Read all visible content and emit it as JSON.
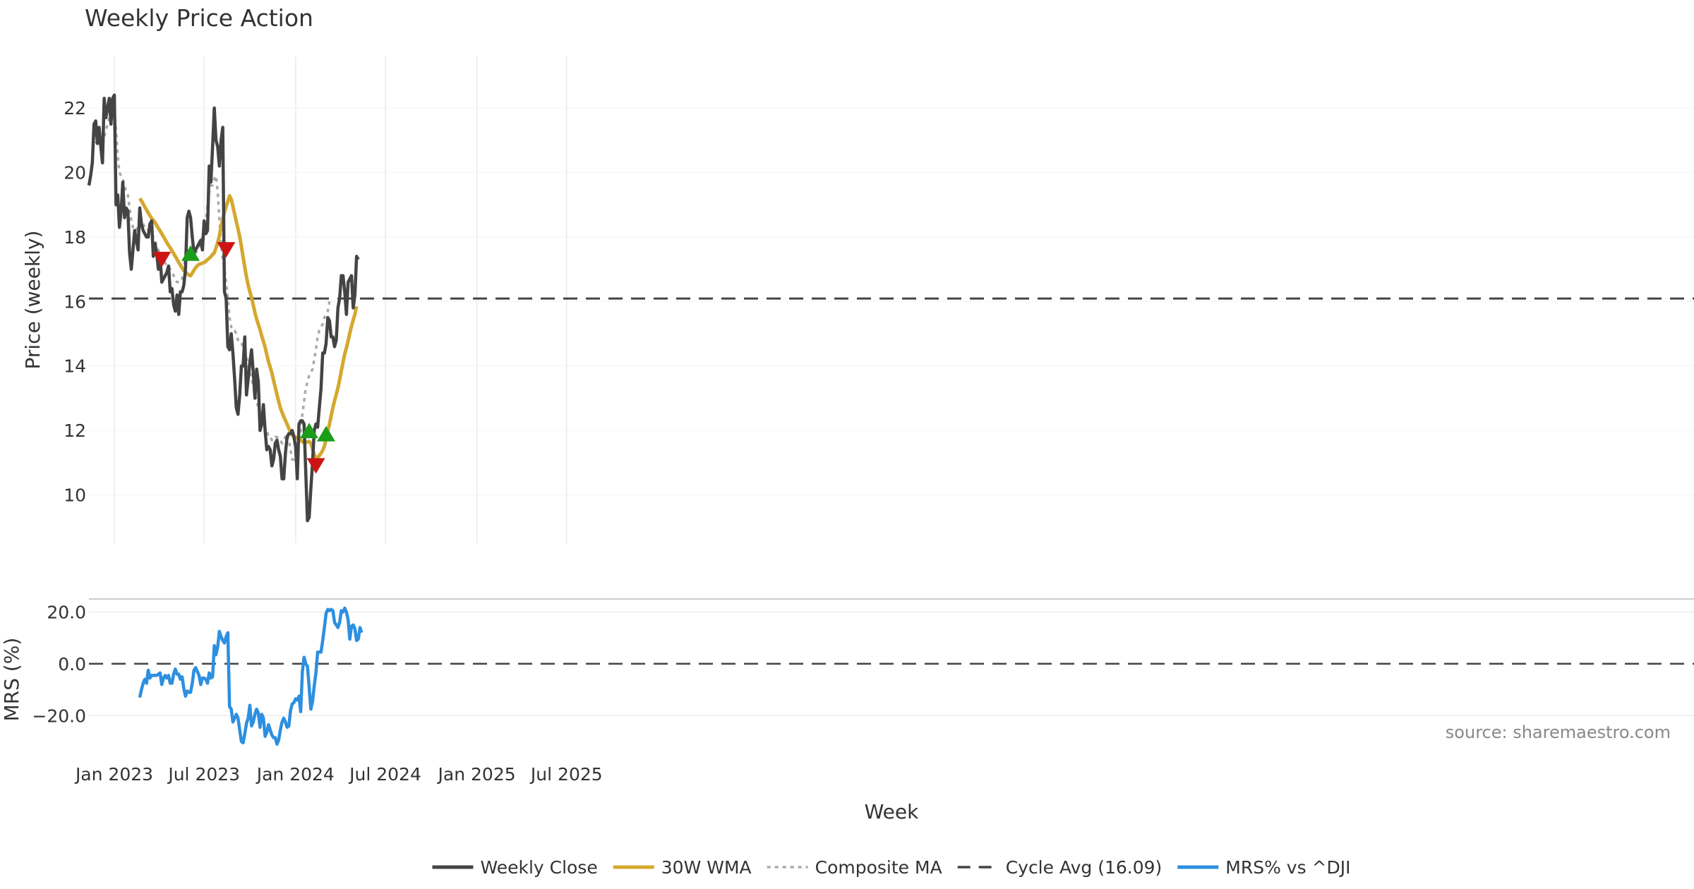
{
  "chart_data": {
    "type": "line",
    "title": "Weekly Price Action",
    "xlabel": "Week",
    "source": "source: sharemaestro.com",
    "x_ticks": [
      "Jan 2023",
      "Jul 2023",
      "Jan 2024",
      "Jul 2024",
      "Jan 2025",
      "Jul 2025"
    ],
    "x_tick_weeks": [
      15,
      68,
      122,
      175,
      229,
      282
    ],
    "price_panel": {
      "ylabel": "Price (weekly)",
      "ylim": [
        8.5,
        23.6
      ],
      "y_ticks": [
        10,
        12,
        14,
        16,
        18,
        20,
        22
      ],
      "y_tick_labels": [
        "10",
        "12",
        "14",
        "16",
        "18",
        "20",
        "22"
      ],
      "cycle_avg": 16.09
    },
    "mrs_panel": {
      "ylabel": "MRS (%)",
      "ylim": [
        -33,
        25
      ],
      "y_ticks": [
        20,
        0,
        -20
      ],
      "y_tick_labels": [
        "20.0",
        "0.0",
        "−20.0"
      ]
    },
    "legend": [
      {
        "label": "Weekly Close",
        "color": "#444444",
        "style": "solid"
      },
      {
        "label": "30W WMA",
        "color": "#d4a82f",
        "style": "solid"
      },
      {
        "label": "Composite MA",
        "color": "#aaaaaa",
        "style": "dotted"
      },
      {
        "label": "Cycle Avg (16.09)",
        "color": "#444444",
        "style": "dashed"
      },
      {
        "label": "MRS% vs ^DJI",
        "color": "#2d8fe0",
        "style": "solid"
      }
    ],
    "colors": {
      "close": "#444444",
      "wma": "#d4a82f",
      "composite": "#aaaaaa",
      "cycle": "#444444",
      "mrs": "#2d8fe0",
      "buy": "#1a9e1a",
      "sell": "#cc1414",
      "grid": "#ececec",
      "text": "#333333"
    },
    "series": [
      {
        "name": "Weekly Close",
        "start_week": 0,
        "values": [
          19.6,
          19.9,
          20.3,
          21.5,
          21.6,
          20.9,
          21.4,
          20.8,
          20.3,
          22.3,
          21.7,
          22.0,
          22.3,
          21.5,
          22.3,
          22.4,
          19.0,
          19.3,
          18.3,
          18.8,
          19.7,
          18.6,
          18.9,
          18.8,
          17.5,
          17.0,
          17.6,
          18.2,
          17.9,
          17.6,
          18.9,
          18.4,
          18.2,
          18.1,
          18.0,
          18.0,
          18.4,
          18.5,
          17.4,
          17.8,
          17.5,
          17.0,
          17.4,
          16.6,
          16.7,
          16.8,
          16.9,
          17.1,
          16.3,
          16.4,
          15.9,
          15.7,
          16.2,
          15.6,
          16.3,
          16.3,
          16.5,
          17.0,
          18.6,
          18.8,
          18.6,
          18.0,
          17.5,
          17.6,
          17.7,
          17.8,
          17.9,
          17.6,
          18.5,
          18.1,
          18.2,
          20.2,
          19.7,
          20.8,
          22.0,
          21.0,
          20.8,
          20.2,
          21.0,
          21.4,
          16.3,
          16.1,
          14.6,
          14.5,
          15.0,
          14.4,
          13.6,
          12.7,
          12.5,
          13.1,
          14.0,
          14.0,
          14.9,
          13.1,
          13.6,
          14.1,
          14.5,
          13.8,
          13.0,
          13.9,
          13.5,
          12.0,
          12.2,
          12.8,
          12.0,
          11.4,
          11.5,
          11.4,
          10.9,
          11.1,
          11.6,
          11.7,
          11.4,
          11.2,
          10.5,
          10.5,
          11.3,
          11.8,
          11.9,
          11.9,
          12.0,
          11.8,
          11.5,
          10.5,
          12.2,
          12.3,
          12.3,
          12.2,
          10.7,
          9.2,
          9.3,
          10.2,
          11.0,
          12.0,
          12.2,
          12.1,
          12.7,
          13.3,
          14.4,
          14.4,
          14.7,
          15.5,
          15.4,
          14.9,
          14.9,
          14.6,
          14.8,
          15.8,
          16.1,
          16.8,
          16.8,
          16.3,
          15.6,
          16.6,
          16.7,
          16.8,
          15.8,
          16.2,
          17.4,
          17.3
        ]
      },
      {
        "name": "30W WMA",
        "start_week": 30,
        "values": [
          19.2,
          19.12,
          19.03,
          18.93,
          18.84,
          18.75,
          18.66,
          18.58,
          18.52,
          18.45,
          18.36,
          18.27,
          18.19,
          18.1,
          18.01,
          17.92,
          17.83,
          17.74,
          17.66,
          17.58,
          17.49,
          17.4,
          17.31,
          17.21,
          17.13,
          17.04,
          16.97,
          16.91,
          16.86,
          16.82,
          16.8,
          16.88,
          16.97,
          17.05,
          17.11,
          17.15,
          17.17,
          17.19,
          17.21,
          17.25,
          17.3,
          17.34,
          17.39,
          17.46,
          17.51,
          17.66,
          17.83,
          18.03,
          18.33,
          18.56,
          18.77,
          18.94,
          19.1,
          19.28,
          19.17,
          18.95,
          18.71,
          18.48,
          18.25,
          18.01,
          17.7,
          17.38,
          17.06,
          16.76,
          16.51,
          16.3,
          16.12,
          15.89,
          15.65,
          15.45,
          15.29,
          15.13,
          14.93,
          14.76,
          14.58,
          14.35,
          14.13,
          13.96,
          13.78,
          13.55,
          13.33,
          13.11,
          12.9,
          12.7,
          12.56,
          12.43,
          12.31,
          12.19,
          12.07,
          11.95,
          11.85,
          11.81,
          11.79,
          11.77,
          11.74,
          11.7,
          11.65,
          11.62,
          11.63,
          11.64,
          11.66,
          11.6,
          11.43,
          11.25,
          11.15,
          11.16,
          11.22,
          11.29,
          11.38,
          11.51,
          11.73,
          11.97,
          12.2,
          12.46,
          12.71,
          12.92,
          13.12,
          13.32,
          13.57,
          13.85,
          14.12,
          14.37,
          14.56,
          14.78,
          15.02,
          15.24,
          15.42,
          15.6,
          15.85
        ]
      },
      {
        "name": "Composite MA",
        "start_week": 4,
        "values": [
          20.9,
          21.0,
          21.0,
          20.9,
          20.8,
          21.1,
          21.3,
          21.5,
          21.7,
          21.8,
          21.7,
          22.0,
          21.3,
          20.5,
          20.0,
          19.9,
          19.8,
          19.6,
          19.4,
          19.3,
          18.9,
          18.5,
          18.3,
          18.2,
          18.2,
          18.4,
          18.5,
          18.5,
          18.4,
          18.3,
          18.3,
          18.2,
          18.2,
          18.1,
          18.0,
          17.9,
          17.7,
          17.6,
          17.4,
          17.3,
          17.3,
          17.2,
          17.1,
          17.1,
          17.0,
          16.9,
          16.8,
          16.7,
          16.6,
          16.6,
          16.6,
          16.7,
          17.0,
          17.4,
          17.5,
          17.5,
          17.4,
          17.4,
          17.5,
          17.5,
          17.6,
          17.7,
          17.8,
          18.0,
          18.2,
          18.5,
          19.0,
          19.4,
          19.6,
          19.6,
          19.8,
          19.9,
          19.4,
          18.6,
          17.8,
          17.3,
          17.0,
          16.6,
          16.1,
          15.5,
          15.2,
          15.1,
          15.1,
          15.0,
          14.8,
          14.7,
          14.7,
          14.6,
          14.4,
          14.3,
          14.0,
          13.8,
          13.6,
          13.4,
          13.1,
          12.9,
          12.7,
          12.5,
          12.3,
          12.2,
          12.1,
          12.0,
          11.8,
          11.8,
          11.7,
          11.7,
          11.8,
          11.8,
          11.7,
          11.7,
          11.6,
          11.7,
          11.8,
          11.9,
          11.7,
          11.4,
          11.1,
          11.1,
          11.3,
          11.5,
          11.7,
          12.0,
          12.5,
          12.9,
          13.3,
          13.5,
          13.7,
          13.8,
          13.9,
          14.2,
          14.5,
          14.9,
          15.1,
          15.2,
          15.3,
          15.5,
          15.6,
          15.7,
          16.0
        ]
      },
      {
        "name": "MRS% vs ^DJI",
        "start_week": 30,
        "values": [
          -13.0,
          -10.0,
          -7.5,
          -6.0,
          -7.5,
          -2.5,
          -5.5,
          -4.5,
          -4.5,
          -4.5,
          -4.5,
          -4.0,
          -3.5,
          -8.0,
          -5.5,
          -4.5,
          -5.5,
          -4.5,
          -7.5,
          -7.5,
          -4.0,
          -2.0,
          -4.0,
          -4.0,
          -6.0,
          -5.0,
          -9.5,
          -12.5,
          -10.5,
          -11.0,
          -11.0,
          -7.5,
          -2.5,
          -1.5,
          -3.0,
          -4.5,
          -8.0,
          -5.5,
          -5.5,
          -6.0,
          -7.5,
          -3.5,
          -5.5,
          -5.0,
          7.0,
          3.5,
          6.5,
          12.5,
          10.5,
          9.0,
          8.0,
          10.5,
          12.0,
          -16.5,
          -17.5,
          -22.5,
          -21.0,
          -19.5,
          -21.0,
          -25.5,
          -30.0,
          -30.5,
          -27.0,
          -23.0,
          -21.0,
          -16.0,
          -24.0,
          -22.5,
          -19.5,
          -17.5,
          -19.0,
          -24.5,
          -19.5,
          -21.0,
          -28.0,
          -26.5,
          -23.5,
          -25.5,
          -27.5,
          -28.5,
          -28.5,
          -31.0,
          -29.5,
          -25.5,
          -22.5,
          -21.0,
          -22.5,
          -24.5,
          -24.0,
          -18.0,
          -15.5,
          -15.0,
          -13.5,
          -14.0,
          -12.5,
          -18.5,
          -3.0,
          2.5,
          0.0,
          -1.0,
          -9.0,
          -17.5,
          -14.5,
          -8.5,
          -3.5,
          4.5,
          4.5,
          4.5,
          9.0,
          14.0,
          19.5,
          21.0,
          20.5,
          21.0,
          20.5,
          16.0,
          15.0,
          14.0,
          16.0,
          20.5,
          20.0,
          21.5,
          20.0,
          17.0,
          9.5,
          14.5,
          15.0,
          13.5,
          9.0,
          9.5,
          14.0,
          12.0
        ]
      }
    ],
    "signals": [
      {
        "type": "sell",
        "week": 43,
        "value": 17.3
      },
      {
        "type": "buy",
        "week": 60,
        "value": 17.5
      },
      {
        "type": "sell",
        "week": 81,
        "value": 17.6
      },
      {
        "type": "buy",
        "week": 130,
        "value": 12.0
      },
      {
        "type": "sell",
        "week": 134,
        "value": 10.9
      },
      {
        "type": "buy",
        "week": 140,
        "value": 11.9
      }
    ]
  }
}
